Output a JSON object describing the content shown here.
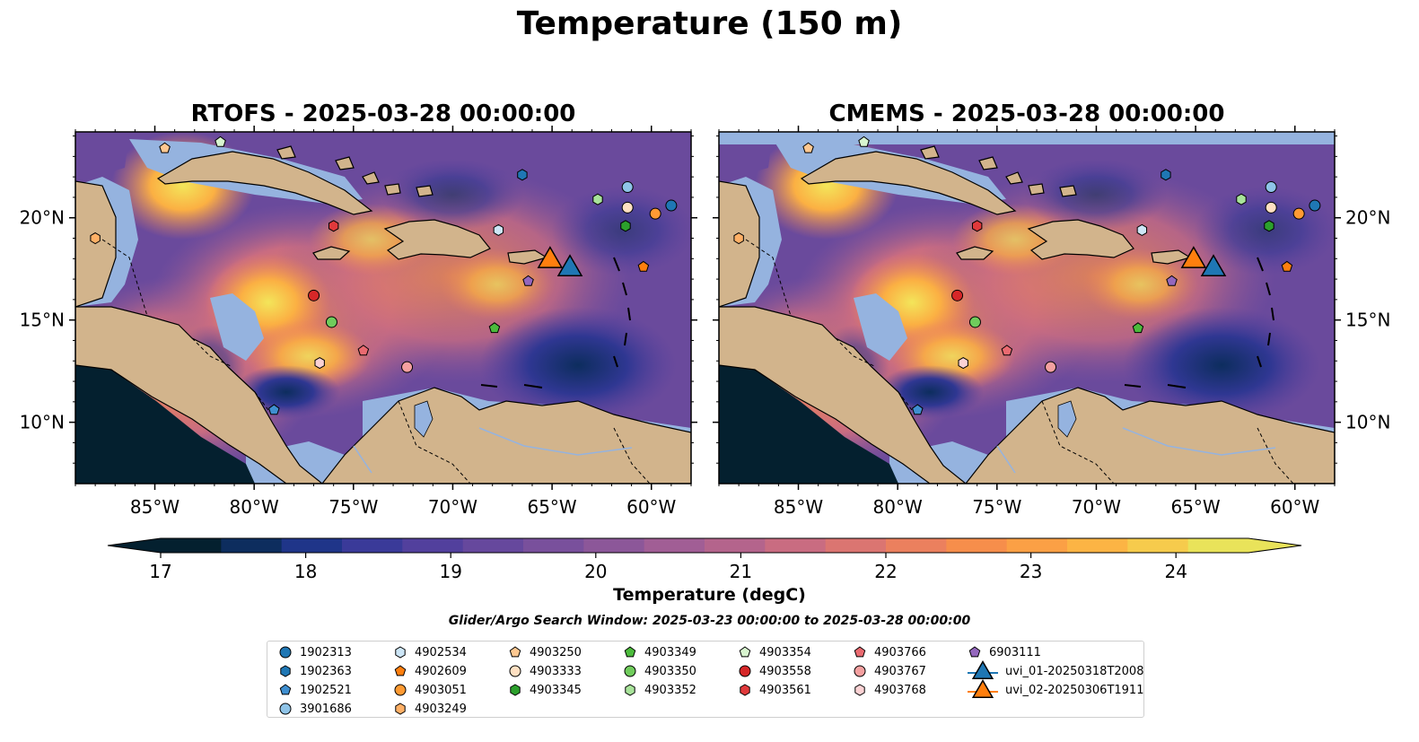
{
  "suptitle": "Temperature (150 m)",
  "panels": [
    {
      "title": "RTOFS - 2025-03-28 00:00:00"
    },
    {
      "title": "CMEMS - 2025-03-28 00:00:00"
    }
  ],
  "map": {
    "lon_range": [
      -89,
      -58
    ],
    "lat_range": [
      7,
      24.2
    ],
    "x_ticks": [
      "85°W",
      "80°W",
      "75°W",
      "70°W",
      "65°W",
      "60°W"
    ],
    "y_ticks": [
      "20°N",
      "15°N",
      "10°N"
    ],
    "land_color": "#d2b48c",
    "shelf_color": "#95b3df"
  },
  "colorbar": {
    "ticks": [
      "17",
      "18",
      "19",
      "20",
      "21",
      "22",
      "23",
      "24"
    ],
    "label": "Temperature (degC)",
    "range": [
      17,
      24.5
    ],
    "extend": "both",
    "colormap": "thermal",
    "colors": [
      "#04202f",
      "#0d2d5e",
      "#1f3589",
      "#3a3a99",
      "#52409d",
      "#66489d",
      "#79509c",
      "#8c5799",
      "#a15e95",
      "#b4648c",
      "#c96c81",
      "#db7571",
      "#eb805e",
      "#f68e4b",
      "#fba045",
      "#fcb444",
      "#f6cb4c",
      "#e9e35a"
    ]
  },
  "search_window": "Glider/Argo Search Window: 2025-03-23 00:00:00 to 2025-03-28 00:00:00",
  "legend": {
    "items": [
      {
        "label": "1902313",
        "marker": "circle",
        "color": "#1f77b4"
      },
      {
        "label": "1902363",
        "marker": "hexagon",
        "color": "#1f77b4"
      },
      {
        "label": "1902521",
        "marker": "pentagon",
        "color": "#3f8fd0"
      },
      {
        "label": "3901686",
        "marker": "circle",
        "color": "#8fc4e8"
      },
      {
        "label": "4902534",
        "marker": "hexagon",
        "color": "#cde6f7"
      },
      {
        "label": "4902609",
        "marker": "pentagon",
        "color": "#ff7f0e"
      },
      {
        "label": "4903051",
        "marker": "circle",
        "color": "#ff9a33"
      },
      {
        "label": "4903249",
        "marker": "hexagon",
        "color": "#ffb066"
      },
      {
        "label": "4903250",
        "marker": "pentagon",
        "color": "#ffc891"
      },
      {
        "label": "4903333",
        "marker": "circle",
        "color": "#ffe0c2"
      },
      {
        "label": "4903345",
        "marker": "hexagon",
        "color": "#2ca02c"
      },
      {
        "label": "4903349",
        "marker": "pentagon",
        "color": "#4cbb3c"
      },
      {
        "label": "4903350",
        "marker": "circle",
        "color": "#70cc5c"
      },
      {
        "label": "4903352",
        "marker": "hexagon",
        "color": "#a8e39a"
      },
      {
        "label": "4903354",
        "marker": "pentagon",
        "color": "#d8f5cf"
      },
      {
        "label": "4903558",
        "marker": "circle",
        "color": "#d62728"
      },
      {
        "label": "4903561",
        "marker": "hexagon",
        "color": "#e0393b"
      },
      {
        "label": "4903766",
        "marker": "pentagon",
        "color": "#ea6a70"
      },
      {
        "label": "4903767",
        "marker": "circle",
        "color": "#f4a0a0"
      },
      {
        "label": "4903768",
        "marker": "hexagon",
        "color": "#fbd2d4"
      },
      {
        "label": "6903111",
        "marker": "pentagon",
        "color": "#9467bd"
      },
      {
        "label": "uvi_01-20250318T2008",
        "marker": "triangle",
        "color": "#1f77b4"
      },
      {
        "label": "uvi_02-20250306T1911",
        "marker": "triangle",
        "color": "#ff7f0e"
      }
    ]
  },
  "observations": [
    {
      "id": "1902313",
      "lon": -59.0,
      "lat": 20.6
    },
    {
      "id": "1902363",
      "lon": -66.5,
      "lat": 22.1
    },
    {
      "id": "1902521",
      "lon": -79.0,
      "lat": 10.6
    },
    {
      "id": "3901686",
      "lon": -61.2,
      "lat": 21.5
    },
    {
      "id": "4902534",
      "lon": -67.7,
      "lat": 19.4
    },
    {
      "id": "4902609",
      "lon": -60.4,
      "lat": 17.6
    },
    {
      "id": "4903051",
      "lon": -59.8,
      "lat": 20.2
    },
    {
      "id": "4903249",
      "lon": -88.0,
      "lat": 19.0
    },
    {
      "id": "4903250",
      "lon": -84.5,
      "lat": 23.4
    },
    {
      "id": "4903333",
      "lon": -61.2,
      "lat": 20.5
    },
    {
      "id": "4903345",
      "lon": -61.3,
      "lat": 19.6
    },
    {
      "id": "4903349",
      "lon": -67.9,
      "lat": 14.6
    },
    {
      "id": "4903350",
      "lon": -76.1,
      "lat": 14.9
    },
    {
      "id": "4903352",
      "lon": -62.7,
      "lat": 20.9
    },
    {
      "id": "4903354",
      "lon": -81.7,
      "lat": 23.7
    },
    {
      "id": "4903558",
      "lon": -77.0,
      "lat": 16.2
    },
    {
      "id": "4903561",
      "lon": -76.0,
      "lat": 19.6
    },
    {
      "id": "4903766",
      "lon": -74.5,
      "lat": 13.5
    },
    {
      "id": "4903767",
      "lon": -72.3,
      "lat": 12.7
    },
    {
      "id": "4903768",
      "lon": -76.7,
      "lat": 12.9
    },
    {
      "id": "6903111",
      "lon": -66.2,
      "lat": 16.9
    },
    {
      "id": "uvi_01-20250318T2008",
      "lon": -64.1,
      "lat": 17.5
    },
    {
      "id": "uvi_02-20250306T1911",
      "lon": -65.1,
      "lat": 17.9
    }
  ]
}
